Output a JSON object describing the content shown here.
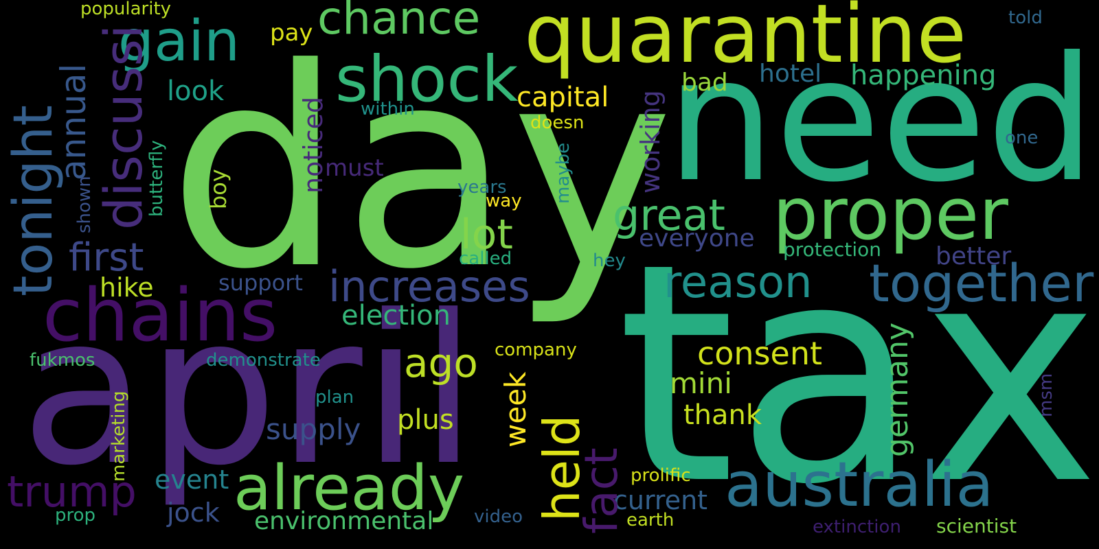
{
  "words": [
    {
      "text": "day",
      "color": "#6dcd59"
    },
    {
      "text": "tax",
      "color": "#26ad81"
    },
    {
      "text": "need",
      "color": "#26ad81"
    },
    {
      "text": "april",
      "color": "#482777"
    },
    {
      "text": "quarantine",
      "color": "#c2df23"
    },
    {
      "text": "chains",
      "color": "#440f66"
    },
    {
      "text": "proper",
      "color": "#5ec962"
    },
    {
      "text": "shock",
      "color": "#35b779"
    },
    {
      "text": "gain",
      "color": "#1f9e89"
    },
    {
      "text": "australia",
      "color": "#2c728e"
    },
    {
      "text": "already",
      "color": "#6dcd59"
    },
    {
      "text": "together",
      "color": "#31688e"
    },
    {
      "text": "chance",
      "color": "#5ec962"
    },
    {
      "text": "tonight",
      "color": "#355f8d"
    },
    {
      "text": "held",
      "color": "#dde318"
    },
    {
      "text": "reason",
      "color": "#21918c"
    },
    {
      "text": "fact",
      "color": "#481a6c"
    },
    {
      "text": "discussi",
      "color": "#472d7b"
    },
    {
      "text": "increases",
      "color": "#3e4a89"
    },
    {
      "text": "great",
      "color": "#4ac16d"
    },
    {
      "text": "trump",
      "color": "#440f66"
    },
    {
      "text": "lot",
      "color": "#84d44b"
    },
    {
      "text": "first",
      "color": "#3e4989"
    },
    {
      "text": "ago",
      "color": "#bddf26"
    },
    {
      "text": "annual",
      "color": "#38588c"
    },
    {
      "text": "consent",
      "color": "#d2e21b"
    },
    {
      "text": "election",
      "color": "#35b779"
    },
    {
      "text": "happening",
      "color": "#35b779"
    },
    {
      "text": "capital",
      "color": "#fde725"
    },
    {
      "text": "plus",
      "color": "#c2df23"
    },
    {
      "text": "supply",
      "color": "#3b528b"
    },
    {
      "text": "mini",
      "color": "#a2da37"
    },
    {
      "text": "thank",
      "color": "#c8e020"
    },
    {
      "text": "current",
      "color": "#34618d"
    },
    {
      "text": "week",
      "color": "#fde725"
    },
    {
      "text": "germany",
      "color": "#52c569"
    },
    {
      "text": "look",
      "color": "#1fa188"
    },
    {
      "text": "hike",
      "color": "#bddf26"
    },
    {
      "text": "noticed",
      "color": "#472a7a"
    },
    {
      "text": "working",
      "color": "#45347f"
    },
    {
      "text": "event",
      "color": "#25838e"
    },
    {
      "text": "jock",
      "color": "#3b528b"
    },
    {
      "text": "environmental",
      "color": "#4ac16d"
    },
    {
      "text": "everyone",
      "color": "#3f4889"
    },
    {
      "text": "better",
      "color": "#414487"
    },
    {
      "text": "hotel",
      "color": "#2d708e"
    },
    {
      "text": "bad",
      "color": "#9bd93c"
    },
    {
      "text": "pay",
      "color": "#dde318"
    },
    {
      "text": "must",
      "color": "#472a7a"
    },
    {
      "text": "support",
      "color": "#3b528b"
    },
    {
      "text": "popularity",
      "color": "#bddf26"
    },
    {
      "text": "within",
      "color": "#20928c"
    },
    {
      "text": "doesn",
      "color": "#dde318"
    },
    {
      "text": "years",
      "color": "#2a788e"
    },
    {
      "text": "way",
      "color": "#fde725"
    },
    {
      "text": "called",
      "color": "#29af7f"
    },
    {
      "text": "hey",
      "color": "#238a8d"
    },
    {
      "text": "protection",
      "color": "#35b779"
    },
    {
      "text": "company",
      "color": "#d8e219"
    },
    {
      "text": "demonstrate",
      "color": "#21918c"
    },
    {
      "text": "fukmos",
      "color": "#4ac16d"
    },
    {
      "text": "plan",
      "color": "#21918c"
    },
    {
      "text": "prolific",
      "color": "#d8e219"
    },
    {
      "text": "video",
      "color": "#34618d"
    },
    {
      "text": "earth",
      "color": "#c2df23"
    },
    {
      "text": "extinction",
      "color": "#3e1f70"
    },
    {
      "text": "scientist",
      "color": "#84d44b"
    },
    {
      "text": "prop",
      "color": "#2db27d"
    },
    {
      "text": "told",
      "color": "#31688e"
    },
    {
      "text": "one",
      "color": "#31688e"
    },
    {
      "text": "msm",
      "color": "#443a83"
    },
    {
      "text": "boy",
      "color": "#a8db34"
    },
    {
      "text": "butterfly",
      "color": "#2db27d"
    },
    {
      "text": "shown",
      "color": "#3b528b"
    },
    {
      "text": "maybe",
      "color": "#228c8d"
    },
    {
      "text": "marketing",
      "color": "#b5de2b"
    }
  ]
}
